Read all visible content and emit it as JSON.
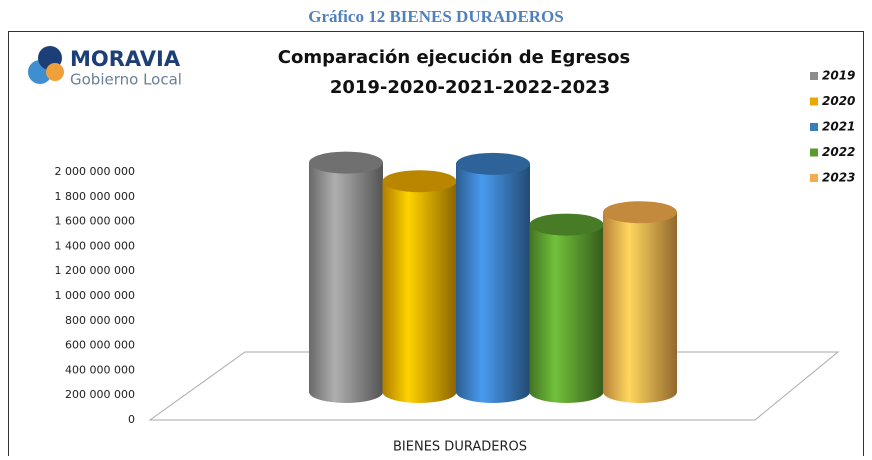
{
  "heading": "Gráfico 12 BIENES DURADEROS",
  "logo": {
    "name": "MORAVIA",
    "subtitle": "Gobierno Local"
  },
  "chart_data": {
    "type": "bar3d",
    "title": [
      "Comparación ejecución de Egresos",
      "2019-2020-2021-2022-2023"
    ],
    "categories": [
      "BIENES DURADEROS"
    ],
    "series": [
      {
        "name": "2019",
        "color": "#8c8c8c",
        "values": [
          1850000000
        ]
      },
      {
        "name": "2020",
        "color": "#e8a800",
        "values": [
          1700000000
        ]
      },
      {
        "name": "2021",
        "color": "#3a7cc0",
        "values": [
          1840000000
        ]
      },
      {
        "name": "2022",
        "color": "#5a9a2e",
        "values": [
          1350000000
        ]
      },
      {
        "name": "2023",
        "color": "#f4ac4c",
        "values": [
          1450000000
        ]
      }
    ],
    "ylim": [
      0,
      2000000000
    ],
    "yticks": [
      0,
      {
        "value": 200000000,
        "label": "200 000 000"
      },
      {
        "value": 400000000,
        "label": "400 000 000"
      },
      {
        "value": 600000000,
        "label": "600 000 000"
      },
      {
        "value": 800000000,
        "label": "800 000 000"
      },
      {
        "value": 1000000000,
        "label": "1 000 000 000"
      },
      {
        "value": 1200000000,
        "label": "1 200 000 000"
      },
      {
        "value": 1400000000,
        "label": "1 400 000 000"
      },
      {
        "value": 1600000000,
        "label": "1 600 000 000"
      },
      {
        "value": 1800000000,
        "label": "1 800 000 000"
      },
      {
        "value": 2000000000,
        "label": "2 000 000 000"
      }
    ],
    "legend": "right"
  }
}
